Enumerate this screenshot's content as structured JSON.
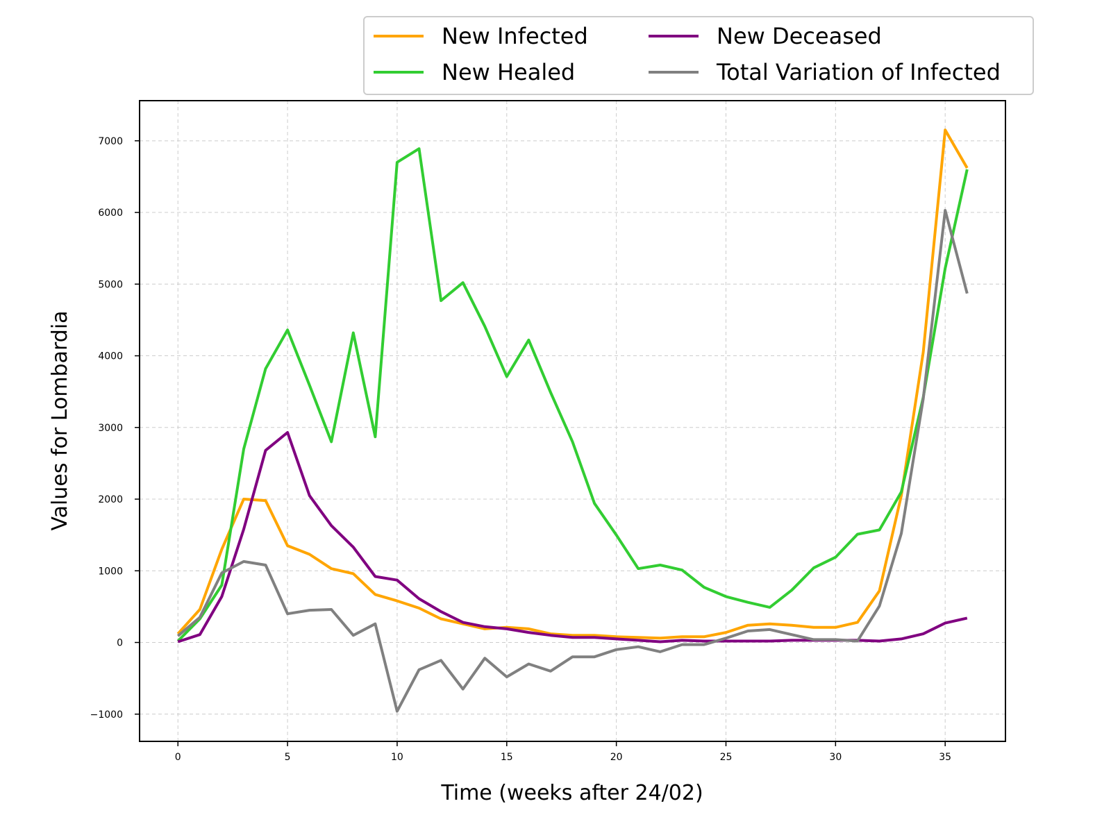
{
  "chart_data": {
    "type": "line",
    "title": "",
    "xlabel": "Time (weeks after 24/02)",
    "ylabel": "Values for Lombardia",
    "xlim": [
      -1.75,
      37.75
    ],
    "ylim": [
      -1380,
      7560
    ],
    "xticks": [
      0,
      5,
      10,
      15,
      20,
      25,
      30,
      35
    ],
    "xtick_labels": [
      "0",
      "5",
      "10",
      "15",
      "20",
      "25",
      "30",
      "35"
    ],
    "yticks": [
      -1000,
      0,
      1000,
      2000,
      3000,
      4000,
      5000,
      6000,
      7000
    ],
    "ytick_labels": [
      "−1000",
      "0",
      "1000",
      "2000",
      "3000",
      "4000",
      "5000",
      "6000",
      "7000"
    ],
    "grid": true,
    "legend_position": "top-right, above plot",
    "x": [
      0,
      1,
      2,
      3,
      4,
      5,
      6,
      7,
      8,
      9,
      10,
      11,
      12,
      13,
      14,
      15,
      16,
      17,
      18,
      19,
      20,
      21,
      22,
      23,
      24,
      25,
      26,
      27,
      28,
      29,
      30,
      31,
      32,
      33,
      34,
      35,
      36
    ],
    "series": [
      {
        "name": "New Infected",
        "color": "#ffa500",
        "values": [
          120,
          460,
          1300,
          2000,
          1980,
          1350,
          1230,
          1030,
          960,
          670,
          580,
          480,
          330,
          260,
          190,
          210,
          190,
          120,
          100,
          100,
          80,
          70,
          60,
          80,
          80,
          140,
          240,
          260,
          240,
          210,
          210,
          280,
          720,
          2050,
          4050,
          7150,
          6620
        ]
      },
      {
        "name": "New Healed",
        "color": "#32cd32",
        "values": [
          20,
          330,
          800,
          2700,
          3820,
          4360,
          3590,
          2800,
          4320,
          2870,
          6700,
          6890,
          4770,
          5020,
          4410,
          3710,
          4220,
          3490,
          2800,
          1940,
          1500,
          1030,
          1080,
          1010,
          770,
          640,
          560,
          490,
          730,
          1040,
          1190,
          1510,
          1570,
          2100,
          3420,
          5220,
          6600
        ]
      },
      {
        "name": "New Deceased",
        "color": "#800080",
        "values": [
          10,
          110,
          640,
          1580,
          2680,
          2930,
          2050,
          1630,
          1330,
          920,
          870,
          610,
          430,
          280,
          220,
          190,
          140,
          100,
          70,
          70,
          50,
          30,
          10,
          30,
          20,
          20,
          20,
          20,
          30,
          30,
          30,
          30,
          20,
          50,
          120,
          270,
          340
        ]
      },
      {
        "name": "Total Variation of Infected",
        "color": "#808080",
        "values": [
          90,
          350,
          970,
          1130,
          1080,
          400,
          450,
          460,
          100,
          260,
          -960,
          -380,
          -250,
          -650,
          -220,
          -480,
          -300,
          -400,
          -200,
          -200,
          -100,
          -60,
          -130,
          -30,
          -30,
          60,
          160,
          180,
          110,
          40,
          40,
          20,
          510,
          1520,
          3400,
          6030,
          4870
        ]
      }
    ]
  },
  "legend": {
    "entries": [
      "New Infected",
      "New Deceased",
      "New Healed",
      "Total Variation of Infected"
    ]
  }
}
